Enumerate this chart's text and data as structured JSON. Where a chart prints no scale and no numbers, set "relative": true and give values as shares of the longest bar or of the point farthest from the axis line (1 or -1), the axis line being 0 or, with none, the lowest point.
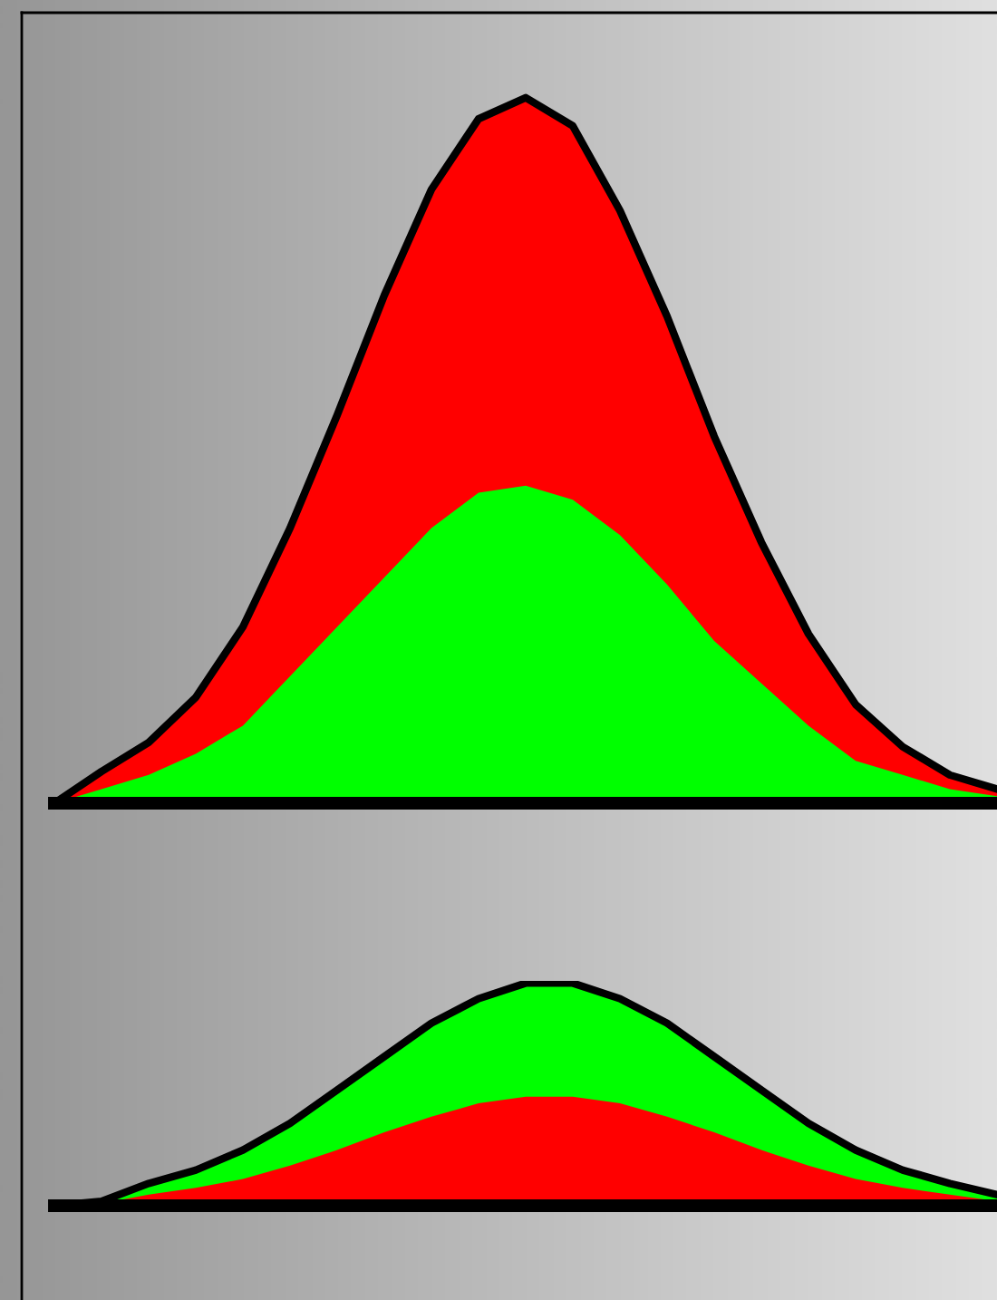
{
  "chart_data": [
    {
      "type": "area",
      "relative": true,
      "categories": [
        null,
        null,
        null,
        null,
        null,
        null,
        null,
        null,
        null,
        null,
        null,
        null,
        null,
        null,
        null,
        null,
        null,
        null,
        null,
        null,
        null
      ],
      "series": [
        {
          "color": "#ff0000",
          "values": [
            0.0,
            0.045,
            0.086,
            0.15,
            0.25,
            0.39,
            0.55,
            0.72,
            0.87,
            0.97,
            1.0,
            0.96,
            0.84,
            0.69,
            0.52,
            0.37,
            0.24,
            0.14,
            0.08,
            0.04,
            0.02
          ]
        },
        {
          "color": "#00ff00",
          "values": [
            0.0,
            0.02,
            0.04,
            0.07,
            0.11,
            0.18,
            0.25,
            0.32,
            0.39,
            0.44,
            0.45,
            0.43,
            0.38,
            0.31,
            0.23,
            0.17,
            0.11,
            0.06,
            0.04,
            0.02,
            0.01
          ]
        }
      ]
    },
    {
      "type": "area",
      "relative": true,
      "categories": [
        null,
        null,
        null,
        null,
        null,
        null,
        null,
        null,
        null,
        null,
        null,
        null,
        null,
        null,
        null,
        null,
        null,
        null,
        null,
        null,
        null
      ],
      "series": [
        {
          "color": "#00ff00",
          "values": [
            0.0,
            0.02,
            0.1,
            0.16,
            0.25,
            0.37,
            0.52,
            0.67,
            0.82,
            0.93,
            1.0,
            1.0,
            0.93,
            0.82,
            0.67,
            0.52,
            0.37,
            0.25,
            0.16,
            0.1,
            0.05
          ]
        },
        {
          "color": "#ff0000",
          "values": [
            0.0,
            0.01,
            0.05,
            0.08,
            0.12,
            0.18,
            0.25,
            0.33,
            0.4,
            0.46,
            0.49,
            0.49,
            0.46,
            0.4,
            0.33,
            0.25,
            0.18,
            0.12,
            0.08,
            0.05,
            0.02
          ]
        }
      ]
    }
  ]
}
